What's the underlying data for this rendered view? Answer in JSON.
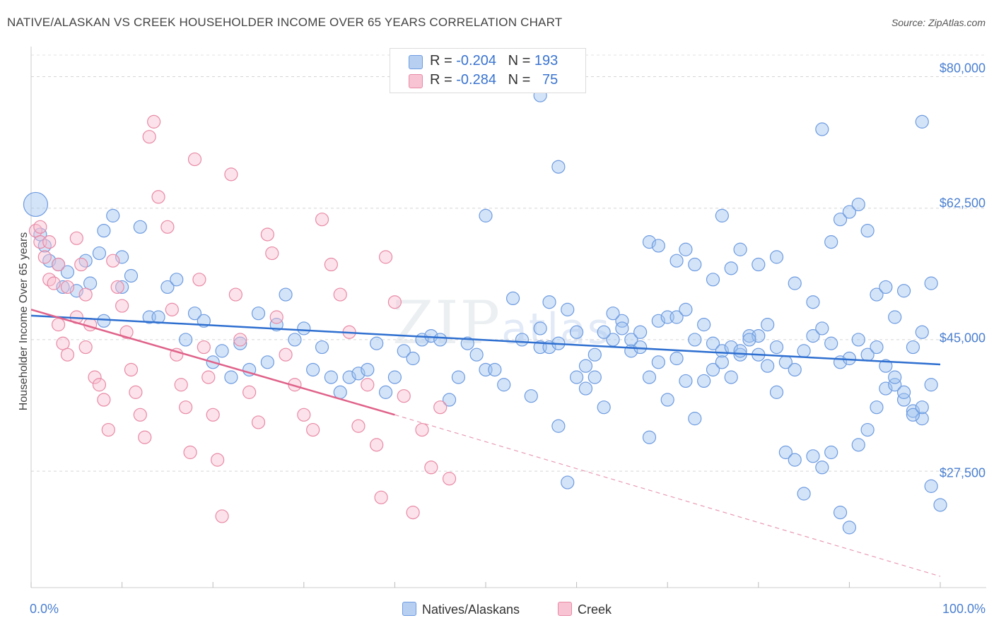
{
  "title": "NATIVE/ALASKAN VS CREEK HOUSEHOLDER INCOME OVER 65 YEARS CORRELATION CHART",
  "source": "Source: ZipAtlas.com",
  "watermark": {
    "zip": "ZIP",
    "atlas": "atlas"
  },
  "legend": {
    "r_label": "R =",
    "n_label": "N =",
    "rows": [
      {
        "r": "-0.204",
        "n": "193",
        "color": "#b7d0f2",
        "border": "#6d9be0"
      },
      {
        "r": "-0.284",
        "n": "75",
        "color": "#f8c4d3",
        "border": "#e88aa6"
      }
    ]
  },
  "chart_data": {
    "type": "scatter",
    "xlabel": "",
    "ylabel": "Householder Income Over 65 years",
    "xlim": [
      0,
      100
    ],
    "ylim": [
      12000,
      84000
    ],
    "x_tick_labels": [
      "0.0%",
      "100.0%"
    ],
    "y_ticks": [
      27500,
      45000,
      62500,
      80000
    ],
    "y_tick_labels": [
      "$27,500",
      "$45,000",
      "$62,500",
      "$80,000"
    ],
    "grid": "horizontal dashed",
    "series": [
      {
        "name": "Natives/Alaskans",
        "color": "#6d9be0",
        "fill": "rgba(160,195,240,0.45)",
        "trend": {
          "x0": 0,
          "y0": 48200,
          "x1": 100,
          "y1": 41700,
          "dashed_after": null
        },
        "points": [
          [
            0.5,
            63000
          ],
          [
            1,
            59000
          ],
          [
            1.5,
            57500
          ],
          [
            2,
            55500
          ],
          [
            3,
            55000
          ],
          [
            4,
            54000
          ],
          [
            3.5,
            52000
          ],
          [
            5,
            51500
          ],
          [
            6,
            55500
          ],
          [
            6.5,
            52500
          ],
          [
            7.5,
            56500
          ],
          [
            8,
            59500
          ],
          [
            9,
            61500
          ],
          [
            10,
            56000
          ],
          [
            8,
            47500
          ],
          [
            10,
            52000
          ],
          [
            11,
            53500
          ],
          [
            12,
            60000
          ],
          [
            13,
            48000
          ],
          [
            14,
            48000
          ],
          [
            15,
            52000
          ],
          [
            16,
            53000
          ],
          [
            17,
            45000
          ],
          [
            18,
            48500
          ],
          [
            19,
            47500
          ],
          [
            20,
            42000
          ],
          [
            21,
            43500
          ],
          [
            22,
            40000
          ],
          [
            23,
            44500
          ],
          [
            24,
            41000
          ],
          [
            25,
            48500
          ],
          [
            26,
            42000
          ],
          [
            27,
            47000
          ],
          [
            28,
            51000
          ],
          [
            29,
            45000
          ],
          [
            30,
            46500
          ],
          [
            31,
            41000
          ],
          [
            32,
            44000
          ],
          [
            33,
            40000
          ],
          [
            34,
            38000
          ],
          [
            35,
            40000
          ],
          [
            36,
            40500
          ],
          [
            37,
            41000
          ],
          [
            38,
            44500
          ],
          [
            39,
            38000
          ],
          [
            40,
            40000
          ],
          [
            41,
            43500
          ],
          [
            42,
            42500
          ],
          [
            43,
            45000
          ],
          [
            44,
            45500
          ],
          [
            45,
            45000
          ],
          [
            46,
            37000
          ],
          [
            47,
            40000
          ],
          [
            48,
            44500
          ],
          [
            49,
            43000
          ],
          [
            50,
            41000
          ],
          [
            51,
            41000
          ],
          [
            52,
            39000
          ],
          [
            53,
            50500
          ],
          [
            54,
            45000
          ],
          [
            55,
            37500
          ],
          [
            56,
            44000
          ],
          [
            57,
            50000
          ],
          [
            58,
            33500
          ],
          [
            59,
            26000
          ],
          [
            60,
            40000
          ],
          [
            61,
            38500
          ],
          [
            62,
            43000
          ],
          [
            63,
            36000
          ],
          [
            64,
            45000
          ],
          [
            65,
            47500
          ],
          [
            66,
            43500
          ],
          [
            67,
            44000
          ],
          [
            68,
            32000
          ],
          [
            69,
            47500
          ],
          [
            70,
            48000
          ],
          [
            71,
            42500
          ],
          [
            72,
            39500
          ],
          [
            73,
            34500
          ],
          [
            74,
            47000
          ],
          [
            75,
            44500
          ],
          [
            76,
            43500
          ],
          [
            77,
            44000
          ],
          [
            78,
            43000
          ],
          [
            79,
            45500
          ],
          [
            80,
            45500
          ],
          [
            81,
            41500
          ],
          [
            82,
            38000
          ],
          [
            83,
            30000
          ],
          [
            84,
            29000
          ],
          [
            85,
            24500
          ],
          [
            86,
            29500
          ],
          [
            87,
            28000
          ],
          [
            88,
            30000
          ],
          [
            89,
            22000
          ],
          [
            90,
            20000
          ],
          [
            91,
            31000
          ],
          [
            92,
            33000
          ],
          [
            93,
            36000
          ],
          [
            94,
            38500
          ],
          [
            95,
            39000
          ],
          [
            96,
            37000
          ],
          [
            97,
            35500
          ],
          [
            98,
            34500
          ],
          [
            99,
            25500
          ],
          [
            100,
            23000
          ],
          [
            56,
            77500
          ],
          [
            58,
            68000
          ],
          [
            76,
            61500
          ],
          [
            87,
            73000
          ],
          [
            98,
            74000
          ],
          [
            50,
            61500
          ],
          [
            68,
            58000
          ],
          [
            69,
            57500
          ],
          [
            71,
            55500
          ],
          [
            72,
            57000
          ],
          [
            73,
            55000
          ],
          [
            75,
            53000
          ],
          [
            77,
            54500
          ],
          [
            78,
            57000
          ],
          [
            80,
            55000
          ],
          [
            82,
            56000
          ],
          [
            84,
            52500
          ],
          [
            86,
            50000
          ],
          [
            88,
            58000
          ],
          [
            89,
            61000
          ],
          [
            90,
            62000
          ],
          [
            91,
            63000
          ],
          [
            92,
            59500
          ],
          [
            93,
            51000
          ],
          [
            94,
            52000
          ],
          [
            95,
            48000
          ],
          [
            96,
            51500
          ],
          [
            97,
            44000
          ],
          [
            98,
            46000
          ],
          [
            99,
            52500
          ],
          [
            56,
            46500
          ],
          [
            57,
            44000
          ],
          [
            58,
            44500
          ],
          [
            59,
            49000
          ],
          [
            60,
            46000
          ],
          [
            61,
            41500
          ],
          [
            62,
            40000
          ],
          [
            63,
            46000
          ],
          [
            64,
            48500
          ],
          [
            65,
            46500
          ],
          [
            66,
            45000
          ],
          [
            67,
            46000
          ],
          [
            68,
            40000
          ],
          [
            69,
            42000
          ],
          [
            70,
            37000
          ],
          [
            71,
            48000
          ],
          [
            72,
            49000
          ],
          [
            73,
            45000
          ],
          [
            74,
            39500
          ],
          [
            75,
            41000
          ],
          [
            76,
            42000
          ],
          [
            77,
            40000
          ],
          [
            78,
            43500
          ],
          [
            79,
            45000
          ],
          [
            80,
            43000
          ],
          [
            81,
            47000
          ],
          [
            82,
            44000
          ],
          [
            83,
            42000
          ],
          [
            84,
            41000
          ],
          [
            85,
            43500
          ],
          [
            86,
            45500
          ],
          [
            87,
            46500
          ],
          [
            88,
            44500
          ],
          [
            89,
            42000
          ],
          [
            90,
            42500
          ],
          [
            91,
            45000
          ],
          [
            92,
            43000
          ],
          [
            93,
            44000
          ],
          [
            94,
            41500
          ],
          [
            95,
            40000
          ],
          [
            96,
            38000
          ],
          [
            97,
            35000
          ],
          [
            98,
            36000
          ],
          [
            99,
            39000
          ]
        ]
      },
      {
        "name": "Creek",
        "color": "#e88aa6",
        "fill": "rgba(248,190,208,0.45)",
        "trend": {
          "x0": 0,
          "y0": 49000,
          "x1": 40,
          "y1": 35000,
          "dashed_to_x": 100,
          "dashed_to_y": 13500
        },
        "points": [
          [
            0.5,
            59500
          ],
          [
            1,
            58000
          ],
          [
            1.5,
            56000
          ],
          [
            2,
            53000
          ],
          [
            2.5,
            52500
          ],
          [
            3,
            47000
          ],
          [
            3.5,
            44500
          ],
          [
            4,
            43000
          ],
          [
            5,
            58500
          ],
          [
            5.5,
            55000
          ],
          [
            6,
            51000
          ],
          [
            6.5,
            47000
          ],
          [
            7,
            40000
          ],
          [
            7.5,
            39000
          ],
          [
            8,
            37000
          ],
          [
            8.5,
            33000
          ],
          [
            9,
            55500
          ],
          [
            9.5,
            52000
          ],
          [
            10,
            49500
          ],
          [
            10.5,
            46000
          ],
          [
            11,
            41000
          ],
          [
            11.5,
            38000
          ],
          [
            12,
            35000
          ],
          [
            12.5,
            32000
          ],
          [
            13,
            72000
          ],
          [
            13.5,
            74000
          ],
          [
            14,
            64000
          ],
          [
            15,
            60000
          ],
          [
            15.5,
            49000
          ],
          [
            16,
            43000
          ],
          [
            16.5,
            39000
          ],
          [
            17,
            36000
          ],
          [
            17.5,
            30000
          ],
          [
            18,
            69000
          ],
          [
            18.5,
            53000
          ],
          [
            19,
            44000
          ],
          [
            19.5,
            40000
          ],
          [
            20,
            35000
          ],
          [
            20.5,
            29000
          ],
          [
            21,
            21500
          ],
          [
            22,
            67000
          ],
          [
            22.5,
            51000
          ],
          [
            23,
            45000
          ],
          [
            24,
            38000
          ],
          [
            25,
            34000
          ],
          [
            26,
            59000
          ],
          [
            26.5,
            56500
          ],
          [
            27,
            48000
          ],
          [
            28,
            43000
          ],
          [
            29,
            39000
          ],
          [
            30,
            35000
          ],
          [
            31,
            33000
          ],
          [
            32,
            61000
          ],
          [
            33,
            55000
          ],
          [
            34,
            51000
          ],
          [
            35,
            46000
          ],
          [
            36,
            33500
          ],
          [
            37,
            39000
          ],
          [
            38,
            31000
          ],
          [
            38.5,
            24000
          ],
          [
            39,
            56000
          ],
          [
            40,
            50000
          ],
          [
            41,
            37500
          ],
          [
            42,
            22000
          ],
          [
            43,
            33000
          ],
          [
            44,
            28000
          ],
          [
            45,
            36000
          ],
          [
            46,
            26500
          ],
          [
            1,
            60000
          ],
          [
            2,
            58000
          ],
          [
            3,
            55000
          ],
          [
            4,
            52000
          ],
          [
            5,
            48000
          ],
          [
            6,
            44000
          ]
        ]
      }
    ]
  },
  "bottom_legend": [
    {
      "label": "Natives/Alaskans",
      "color": "#b7d0f2",
      "border": "#6d9be0"
    },
    {
      "label": "Creek",
      "color": "#f8c4d3",
      "border": "#e88aa6"
    }
  ]
}
